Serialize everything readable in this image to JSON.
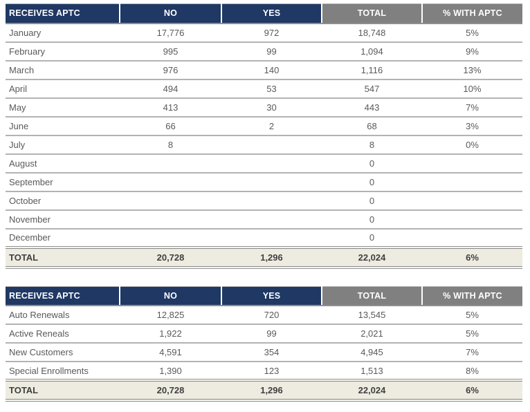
{
  "colors": {
    "header_navy": "#1F3864",
    "header_gray": "#808080",
    "header_text": "#FFFFFF",
    "row_text": "#595959",
    "row_border": "#B3B3B3",
    "total_bg": "#EEECE1",
    "total_text": "#3F3F3F",
    "total_border": "#8C8C8C",
    "page_bg": "#FFFFFF"
  },
  "tables": [
    {
      "name": "monthly-aptc-table",
      "headers": [
        "RECEIVES APTC",
        "NO",
        "YES",
        "TOTAL",
        "% WITH APTC"
      ],
      "rows": [
        {
          "label": "January",
          "no": "17,776",
          "yes": "972",
          "total": "18,748",
          "pct": "5%"
        },
        {
          "label": "February",
          "no": "995",
          "yes": "99",
          "total": "1,094",
          "pct": "9%"
        },
        {
          "label": "March",
          "no": "976",
          "yes": "140",
          "total": "1,116",
          "pct": "13%"
        },
        {
          "label": "April",
          "no": "494",
          "yes": "53",
          "total": "547",
          "pct": "10%"
        },
        {
          "label": "May",
          "no": "413",
          "yes": "30",
          "total": "443",
          "pct": "7%"
        },
        {
          "label": "June",
          "no": "66",
          "yes": "2",
          "total": "68",
          "pct": "3%"
        },
        {
          "label": "July",
          "no": "8",
          "yes": "",
          "total": "8",
          "pct": "0%"
        },
        {
          "label": "August",
          "no": "",
          "yes": "",
          "total": "0",
          "pct": ""
        },
        {
          "label": "September",
          "no": "",
          "yes": "",
          "total": "0",
          "pct": ""
        },
        {
          "label": "October",
          "no": "",
          "yes": "",
          "total": "0",
          "pct": ""
        },
        {
          "label": "November",
          "no": "",
          "yes": "",
          "total": "0",
          "pct": ""
        },
        {
          "label": "December",
          "no": "",
          "yes": "",
          "total": "0",
          "pct": ""
        }
      ],
      "total_row": {
        "label": "TOTAL",
        "no": "20,728",
        "yes": "1,296",
        "total": "22,024",
        "pct": "6%"
      }
    },
    {
      "name": "enrollment-type-aptc-table",
      "headers": [
        "RECEIVES APTC",
        "NO",
        "YES",
        "TOTAL",
        "% WITH APTC"
      ],
      "rows": [
        {
          "label": "Auto Renewals",
          "no": "12,825",
          "yes": "720",
          "total": "13,545",
          "pct": "5%"
        },
        {
          "label": "Active Reneals",
          "no": "1,922",
          "yes": "99",
          "total": "2,021",
          "pct": "5%"
        },
        {
          "label": "New Customers",
          "no": "4,591",
          "yes": "354",
          "total": "4,945",
          "pct": "7%"
        },
        {
          "label": "Special Enrollments",
          "no": "1,390",
          "yes": "123",
          "total": "1,513",
          "pct": "8%"
        }
      ],
      "total_row": {
        "label": "TOTAL",
        "no": "20,728",
        "yes": "1,296",
        "total": "22,024",
        "pct": "6%"
      }
    }
  ]
}
